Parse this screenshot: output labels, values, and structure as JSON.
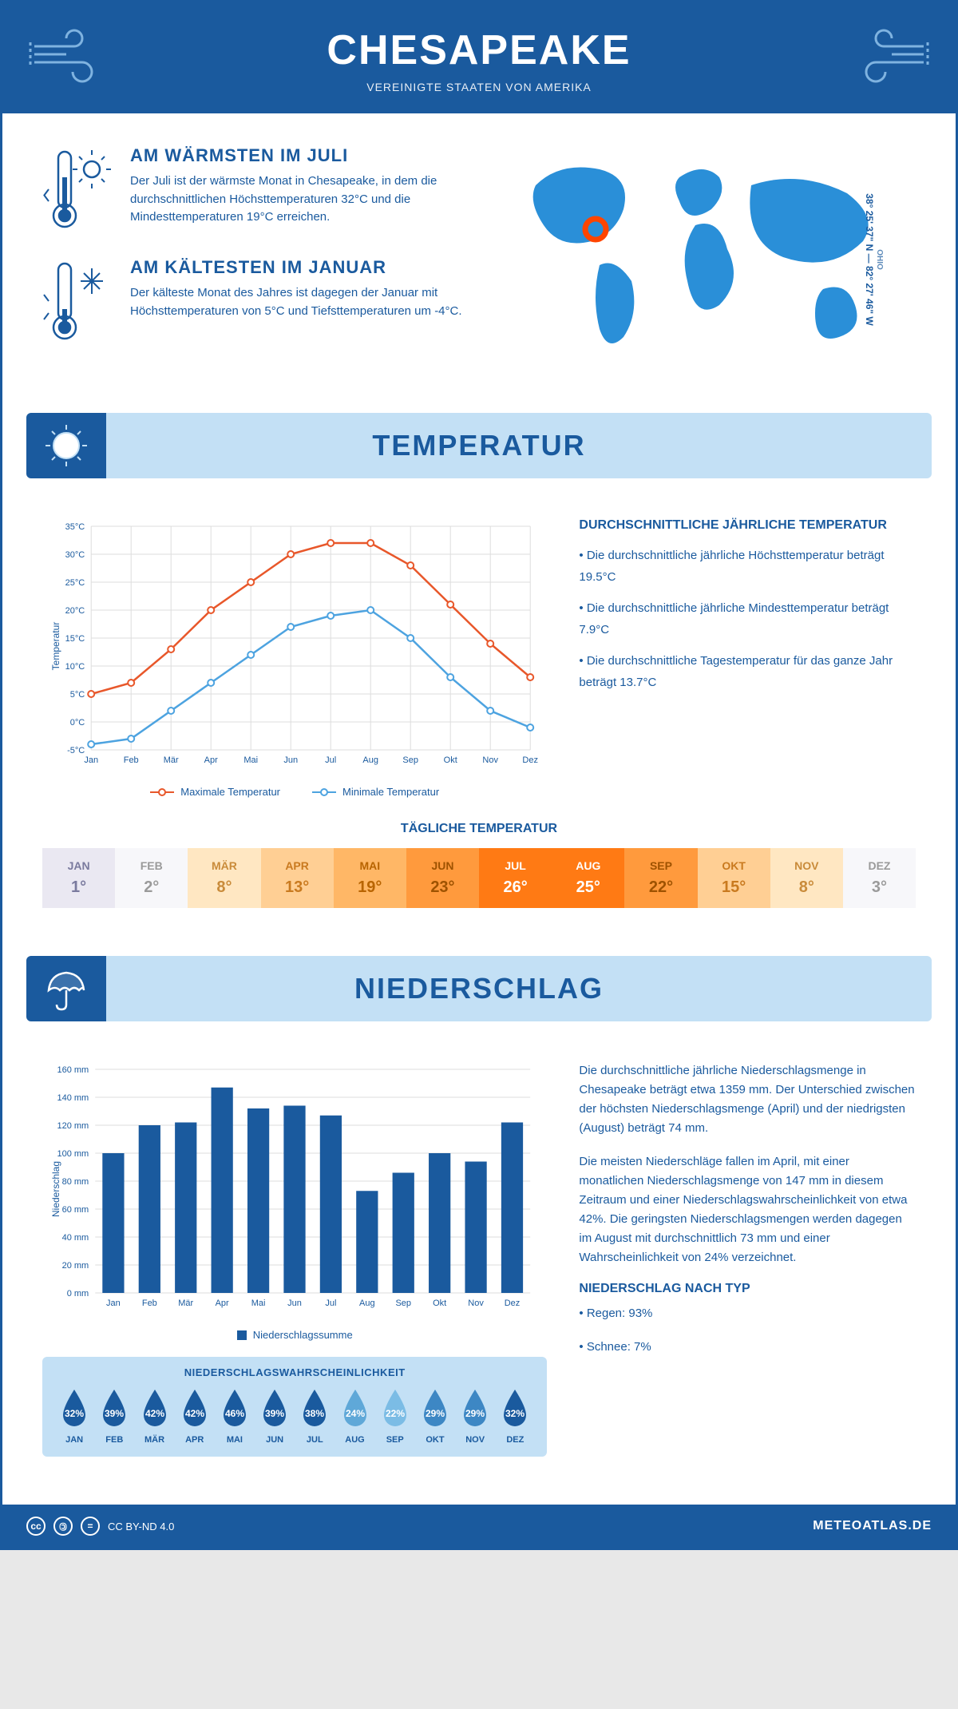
{
  "header": {
    "title": "CHESAPEAKE",
    "subtitle": "VEREINIGTE STAATEN VON AMERIKA"
  },
  "coords": {
    "text": "38° 25' 37\" N — 82° 27' 46\" W",
    "state": "OHIO"
  },
  "facts": {
    "warmest": {
      "title": "AM WÄRMSTEN IM JULI",
      "body": "Der Juli ist der wärmste Monat in Chesapeake, in dem die durchschnittlichen Höchsttemperaturen 32°C und die Mindesttemperaturen 19°C erreichen."
    },
    "coldest": {
      "title": "AM KÄLTESTEN IM JANUAR",
      "body": "Der kälteste Monat des Jahres ist dagegen der Januar mit Höchsttemperaturen von 5°C und Tiefsttemperaturen um -4°C."
    }
  },
  "sections": {
    "temperature": "TEMPERATUR",
    "precipitation": "NIEDERSCHLAG"
  },
  "temp_chart": {
    "type": "line",
    "months": [
      "Jan",
      "Feb",
      "Mär",
      "Apr",
      "Mai",
      "Jun",
      "Jul",
      "Aug",
      "Sep",
      "Okt",
      "Nov",
      "Dez"
    ],
    "max_series": {
      "label": "Maximale Temperatur",
      "color": "#e8572a",
      "values": [
        5,
        7,
        13,
        20,
        25,
        30,
        32,
        32,
        28,
        21,
        14,
        8
      ]
    },
    "min_series": {
      "label": "Minimale Temperatur",
      "color": "#4da3e0",
      "values": [
        -4,
        -3,
        2,
        7,
        12,
        17,
        19,
        20,
        15,
        8,
        2,
        -1
      ]
    },
    "ylim": [
      -5,
      35
    ],
    "ystep": 5,
    "yunit": "°C",
    "ylabel": "Temperatur",
    "grid_color": "#e0e0e0",
    "bg": "#ffffff"
  },
  "temp_info": {
    "heading": "DURCHSCHNITTLICHE JÄHRLICHE TEMPERATUR",
    "bullets": [
      "• Die durchschnittliche jährliche Höchsttemperatur beträgt 19.5°C",
      "• Die durchschnittliche jährliche Mindesttemperatur beträgt 7.9°C",
      "• Die durchschnittliche Tagestemperatur für das ganze Jahr beträgt 13.7°C"
    ]
  },
  "daily_temp": {
    "heading": "TÄGLICHE TEMPERATUR",
    "months": [
      "JAN",
      "FEB",
      "MÄR",
      "APR",
      "MAI",
      "JUN",
      "JUL",
      "AUG",
      "SEP",
      "OKT",
      "NOV",
      "DEZ"
    ],
    "values": [
      "1°",
      "2°",
      "8°",
      "13°",
      "19°",
      "23°",
      "26°",
      "25°",
      "22°",
      "15°",
      "8°",
      "3°"
    ],
    "bg_colors": [
      "#eae8f2",
      "#f7f7fa",
      "#ffe7c2",
      "#ffcf94",
      "#ffb766",
      "#ff9a3d",
      "#ff7a14",
      "#ff7a14",
      "#ff9a3d",
      "#ffcf94",
      "#ffe7c2",
      "#f7f7fa"
    ],
    "text_colors": [
      "#7a7a9e",
      "#9a9a9a",
      "#c98b3a",
      "#c97a1f",
      "#b86400",
      "#9e5200",
      "#ffffff",
      "#ffffff",
      "#9e5200",
      "#c97a1f",
      "#c98b3a",
      "#9a9a9a"
    ]
  },
  "precip_chart": {
    "type": "bar",
    "months": [
      "Jan",
      "Feb",
      "Mär",
      "Apr",
      "Mai",
      "Jun",
      "Jul",
      "Aug",
      "Sep",
      "Okt",
      "Nov",
      "Dez"
    ],
    "values": [
      100,
      120,
      122,
      147,
      132,
      134,
      127,
      73,
      86,
      100,
      94,
      122
    ],
    "bar_color": "#1a5a9e",
    "ylim": [
      0,
      160
    ],
    "ystep": 20,
    "yunit": " mm",
    "ylabel": "Niederschlag",
    "legend": "Niederschlagssumme",
    "grid_color": "#e0e0e0"
  },
  "precip_info": {
    "p1": "Die durchschnittliche jährliche Niederschlagsmenge in Chesapeake beträgt etwa 1359 mm. Der Unterschied zwischen der höchsten Niederschlagsmenge (April) und der niedrigsten (August) beträgt 74 mm.",
    "p2": "Die meisten Niederschläge fallen im April, mit einer monatlichen Niederschlagsmenge von 147 mm in diesem Zeitraum und einer Niederschlagswahrscheinlichkeit von etwa 42%. Die geringsten Niederschlagsmengen werden dagegen im August mit durchschnittlich 73 mm und einer Wahrscheinlichkeit von 24% verzeichnet.",
    "type_heading": "NIEDERSCHLAG NACH TYP",
    "type_bullets": [
      "• Regen: 93%",
      "• Schnee: 7%"
    ]
  },
  "prob": {
    "heading": "NIEDERSCHLAGSWAHRSCHEINLICHKEIT",
    "months": [
      "JAN",
      "FEB",
      "MÄR",
      "APR",
      "MAI",
      "JUN",
      "JUL",
      "AUG",
      "SEP",
      "OKT",
      "NOV",
      "DEZ"
    ],
    "values": [
      "32%",
      "39%",
      "42%",
      "42%",
      "46%",
      "39%",
      "38%",
      "24%",
      "22%",
      "29%",
      "29%",
      "32%"
    ],
    "colors": [
      "#1a5a9e",
      "#1a5a9e",
      "#1a5a9e",
      "#1a5a9e",
      "#1a5a9e",
      "#1a5a9e",
      "#1a5a9e",
      "#5fa8d8",
      "#7bbce5",
      "#3d87c4",
      "#3d87c4",
      "#1a5a9e"
    ]
  },
  "footer": {
    "license": "CC BY-ND 4.0",
    "brand": "METEOATLAS.DE"
  },
  "colors": {
    "primary": "#1a5a9e",
    "light": "#c3e0f5",
    "accent_blue": "#4da3e0"
  }
}
